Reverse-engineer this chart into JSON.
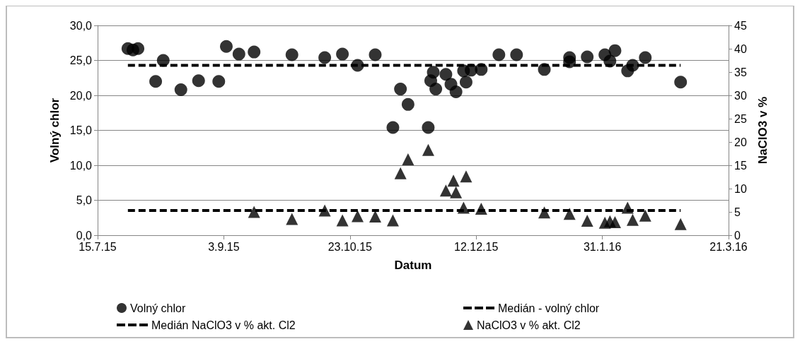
{
  "chart_data": {
    "type": "scatter",
    "xlabel": "Datum",
    "ylabel": "Volný chlor",
    "y2label": "NaClO3 v %",
    "xlim": [
      "2015-07-15",
      "2016-03-21"
    ],
    "xticks": [
      {
        "value": "2015-07-15",
        "label": "15.7.15"
      },
      {
        "value": "2015-09-03",
        "label": "3.9.15"
      },
      {
        "value": "2015-10-23",
        "label": "23.10.15"
      },
      {
        "value": "2015-12-12",
        "label": "12.12.15"
      },
      {
        "value": "2016-01-31",
        "label": "31.1.16"
      },
      {
        "value": "2016-03-21",
        "label": "21.3.16"
      }
    ],
    "ylim": [
      0,
      30
    ],
    "yticks": [
      {
        "value": 0,
        "label": "0,0"
      },
      {
        "value": 5,
        "label": "5,0"
      },
      {
        "value": 10,
        "label": "10,0"
      },
      {
        "value": 15,
        "label": "15,0"
      },
      {
        "value": 20,
        "label": "20,0"
      },
      {
        "value": 25,
        "label": "25,0"
      },
      {
        "value": 30,
        "label": "30,0"
      }
    ],
    "y2lim": [
      0,
      45
    ],
    "y2ticks": [
      0,
      5,
      10,
      15,
      20,
      25,
      30,
      35,
      40,
      45
    ],
    "grid": "y",
    "legend": "bottom",
    "series": [
      {
        "name": "Volný chlor",
        "marker": "circle",
        "color": "#000000",
        "x": [
          "2015-07-27",
          "2015-07-29",
          "2015-07-31",
          "2015-08-07",
          "2015-08-10",
          "2015-08-17",
          "2015-08-24",
          "2015-09-01",
          "2015-09-04",
          "2015-09-09",
          "2015-09-15",
          "2015-09-30",
          "2015-10-13",
          "2015-10-20",
          "2015-10-26",
          "2015-11-02",
          "2015-11-09",
          "2015-11-12",
          "2015-11-15",
          "2015-11-23",
          "2015-11-24",
          "2015-11-25",
          "2015-11-26",
          "2015-11-30",
          "2015-12-02",
          "2015-12-04",
          "2015-12-07",
          "2015-12-08",
          "2015-12-10",
          "2015-12-14",
          "2015-12-21",
          "2015-12-28",
          "2016-01-08",
          "2016-01-18",
          "2016-01-18",
          "2016-01-25",
          "2016-02-01",
          "2016-02-03",
          "2016-02-05",
          "2016-02-10",
          "2016-02-12",
          "2016-02-17",
          "2016-03-02"
        ],
        "values": [
          26.7,
          26.5,
          26.7,
          22.0,
          25.0,
          20.8,
          22.1,
          22.0,
          27.0,
          25.9,
          26.2,
          25.8,
          25.4,
          25.9,
          24.3,
          25.8,
          15.4,
          20.9,
          18.7,
          15.4,
          22.1,
          23.3,
          20.9,
          23.0,
          21.6,
          20.5,
          23.5,
          21.9,
          23.6,
          23.7,
          25.8,
          25.8,
          23.7,
          25.4,
          24.8,
          25.5,
          25.8,
          24.9,
          26.4,
          23.5,
          24.3,
          25.4,
          21.9
        ]
      },
      {
        "name": "Medián - volný chlor",
        "type": "line",
        "marker": "none",
        "line_style": "dashed",
        "color": "#000000",
        "x": [
          "2015-07-27",
          "2016-03-02"
        ],
        "values": [
          24.3,
          24.3
        ]
      },
      {
        "name": "Medián NaClO3 v % akt. Cl2",
        "type": "line",
        "marker": "none",
        "line_style": "dashed",
        "axis": "y2",
        "color": "#000000",
        "x": [
          "2015-07-27",
          "2016-03-02"
        ],
        "values": [
          5.3,
          5.3
        ]
      },
      {
        "name": "NaClO3 v % akt. Cl2",
        "marker": "triangle",
        "axis": "y2",
        "color": "#000000",
        "x": [
          "2015-09-15",
          "2015-09-30",
          "2015-10-13",
          "2015-10-20",
          "2015-10-26",
          "2015-11-02",
          "2015-11-09",
          "2015-11-12",
          "2015-11-15",
          "2015-11-23",
          "2015-11-30",
          "2015-12-03",
          "2015-12-04",
          "2015-12-07",
          "2015-12-08",
          "2015-12-14",
          "2016-01-08",
          "2016-01-18",
          "2016-01-25",
          "2016-02-01",
          "2016-02-03",
          "2016-02-05",
          "2016-02-10",
          "2016-02-12",
          "2016-02-17",
          "2016-03-02"
        ],
        "values": [
          5.0,
          3.5,
          5.3,
          3.2,
          4.1,
          4.0,
          3.2,
          13.3,
          16.3,
          18.3,
          9.6,
          11.7,
          9.2,
          5.9,
          12.6,
          5.7,
          4.9,
          4.6,
          3.1,
          2.7,
          3.0,
          2.8,
          5.9,
          3.3,
          4.2,
          2.4
        ]
      }
    ]
  }
}
